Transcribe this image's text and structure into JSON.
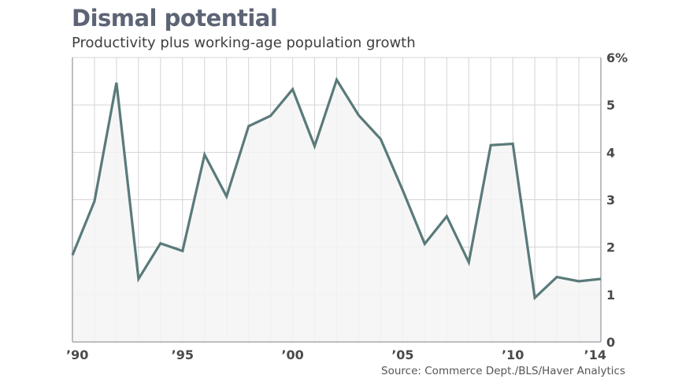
{
  "header": {
    "title": "Dismal potential",
    "subtitle": "Productivity plus working-age population growth"
  },
  "footer": {
    "source": "Source: Commerce Dept./BLS/Haver Analytics"
  },
  "colors": {
    "line": "#5a7a7a",
    "fill": "#f4f4f5",
    "grid": "#d4d4d8",
    "axis": "#a9a9b0"
  },
  "chart_data": {
    "type": "area",
    "title": "Dismal potential",
    "subtitle": "Productivity plus working-age population growth",
    "xlabel": "",
    "ylabel": "",
    "x": [
      1990,
      1991,
      1992,
      1993,
      1994,
      1995,
      1996,
      1997,
      1998,
      1999,
      2000,
      2001,
      2002,
      2003,
      2004,
      2005,
      2006,
      2007,
      2008,
      2009,
      2010,
      2011,
      2012,
      2013,
      2014
    ],
    "values": [
      1.83,
      2.97,
      5.47,
      1.33,
      2.08,
      1.92,
      3.95,
      3.07,
      4.55,
      4.77,
      5.33,
      4.13,
      5.53,
      4.78,
      4.28,
      3.2,
      2.07,
      2.65,
      1.68,
      4.15,
      4.18,
      0.93,
      1.37,
      1.28,
      1.33
    ],
    "xlim": [
      1990,
      2014
    ],
    "ylim": [
      0,
      6
    ],
    "x_ticks": [
      {
        "value": 1990,
        "label": "’90"
      },
      {
        "value": 1995,
        "label": "’95"
      },
      {
        "value": 2000,
        "label": "’00"
      },
      {
        "value": 2005,
        "label": "’05"
      },
      {
        "value": 2010,
        "label": "’10"
      },
      {
        "value": 2014,
        "label": "’14"
      }
    ],
    "y_ticks": [
      {
        "value": 0,
        "label": "0"
      },
      {
        "value": 1,
        "label": "1"
      },
      {
        "value": 2,
        "label": "2"
      },
      {
        "value": 3,
        "label": "3"
      },
      {
        "value": 4,
        "label": "4"
      },
      {
        "value": 5,
        "label": "5"
      },
      {
        "value": 6,
        "label": "6%"
      }
    ],
    "y_axis_position": "right",
    "grid": true,
    "source": "Source: Commerce Dept./BLS/Haver Analytics"
  }
}
